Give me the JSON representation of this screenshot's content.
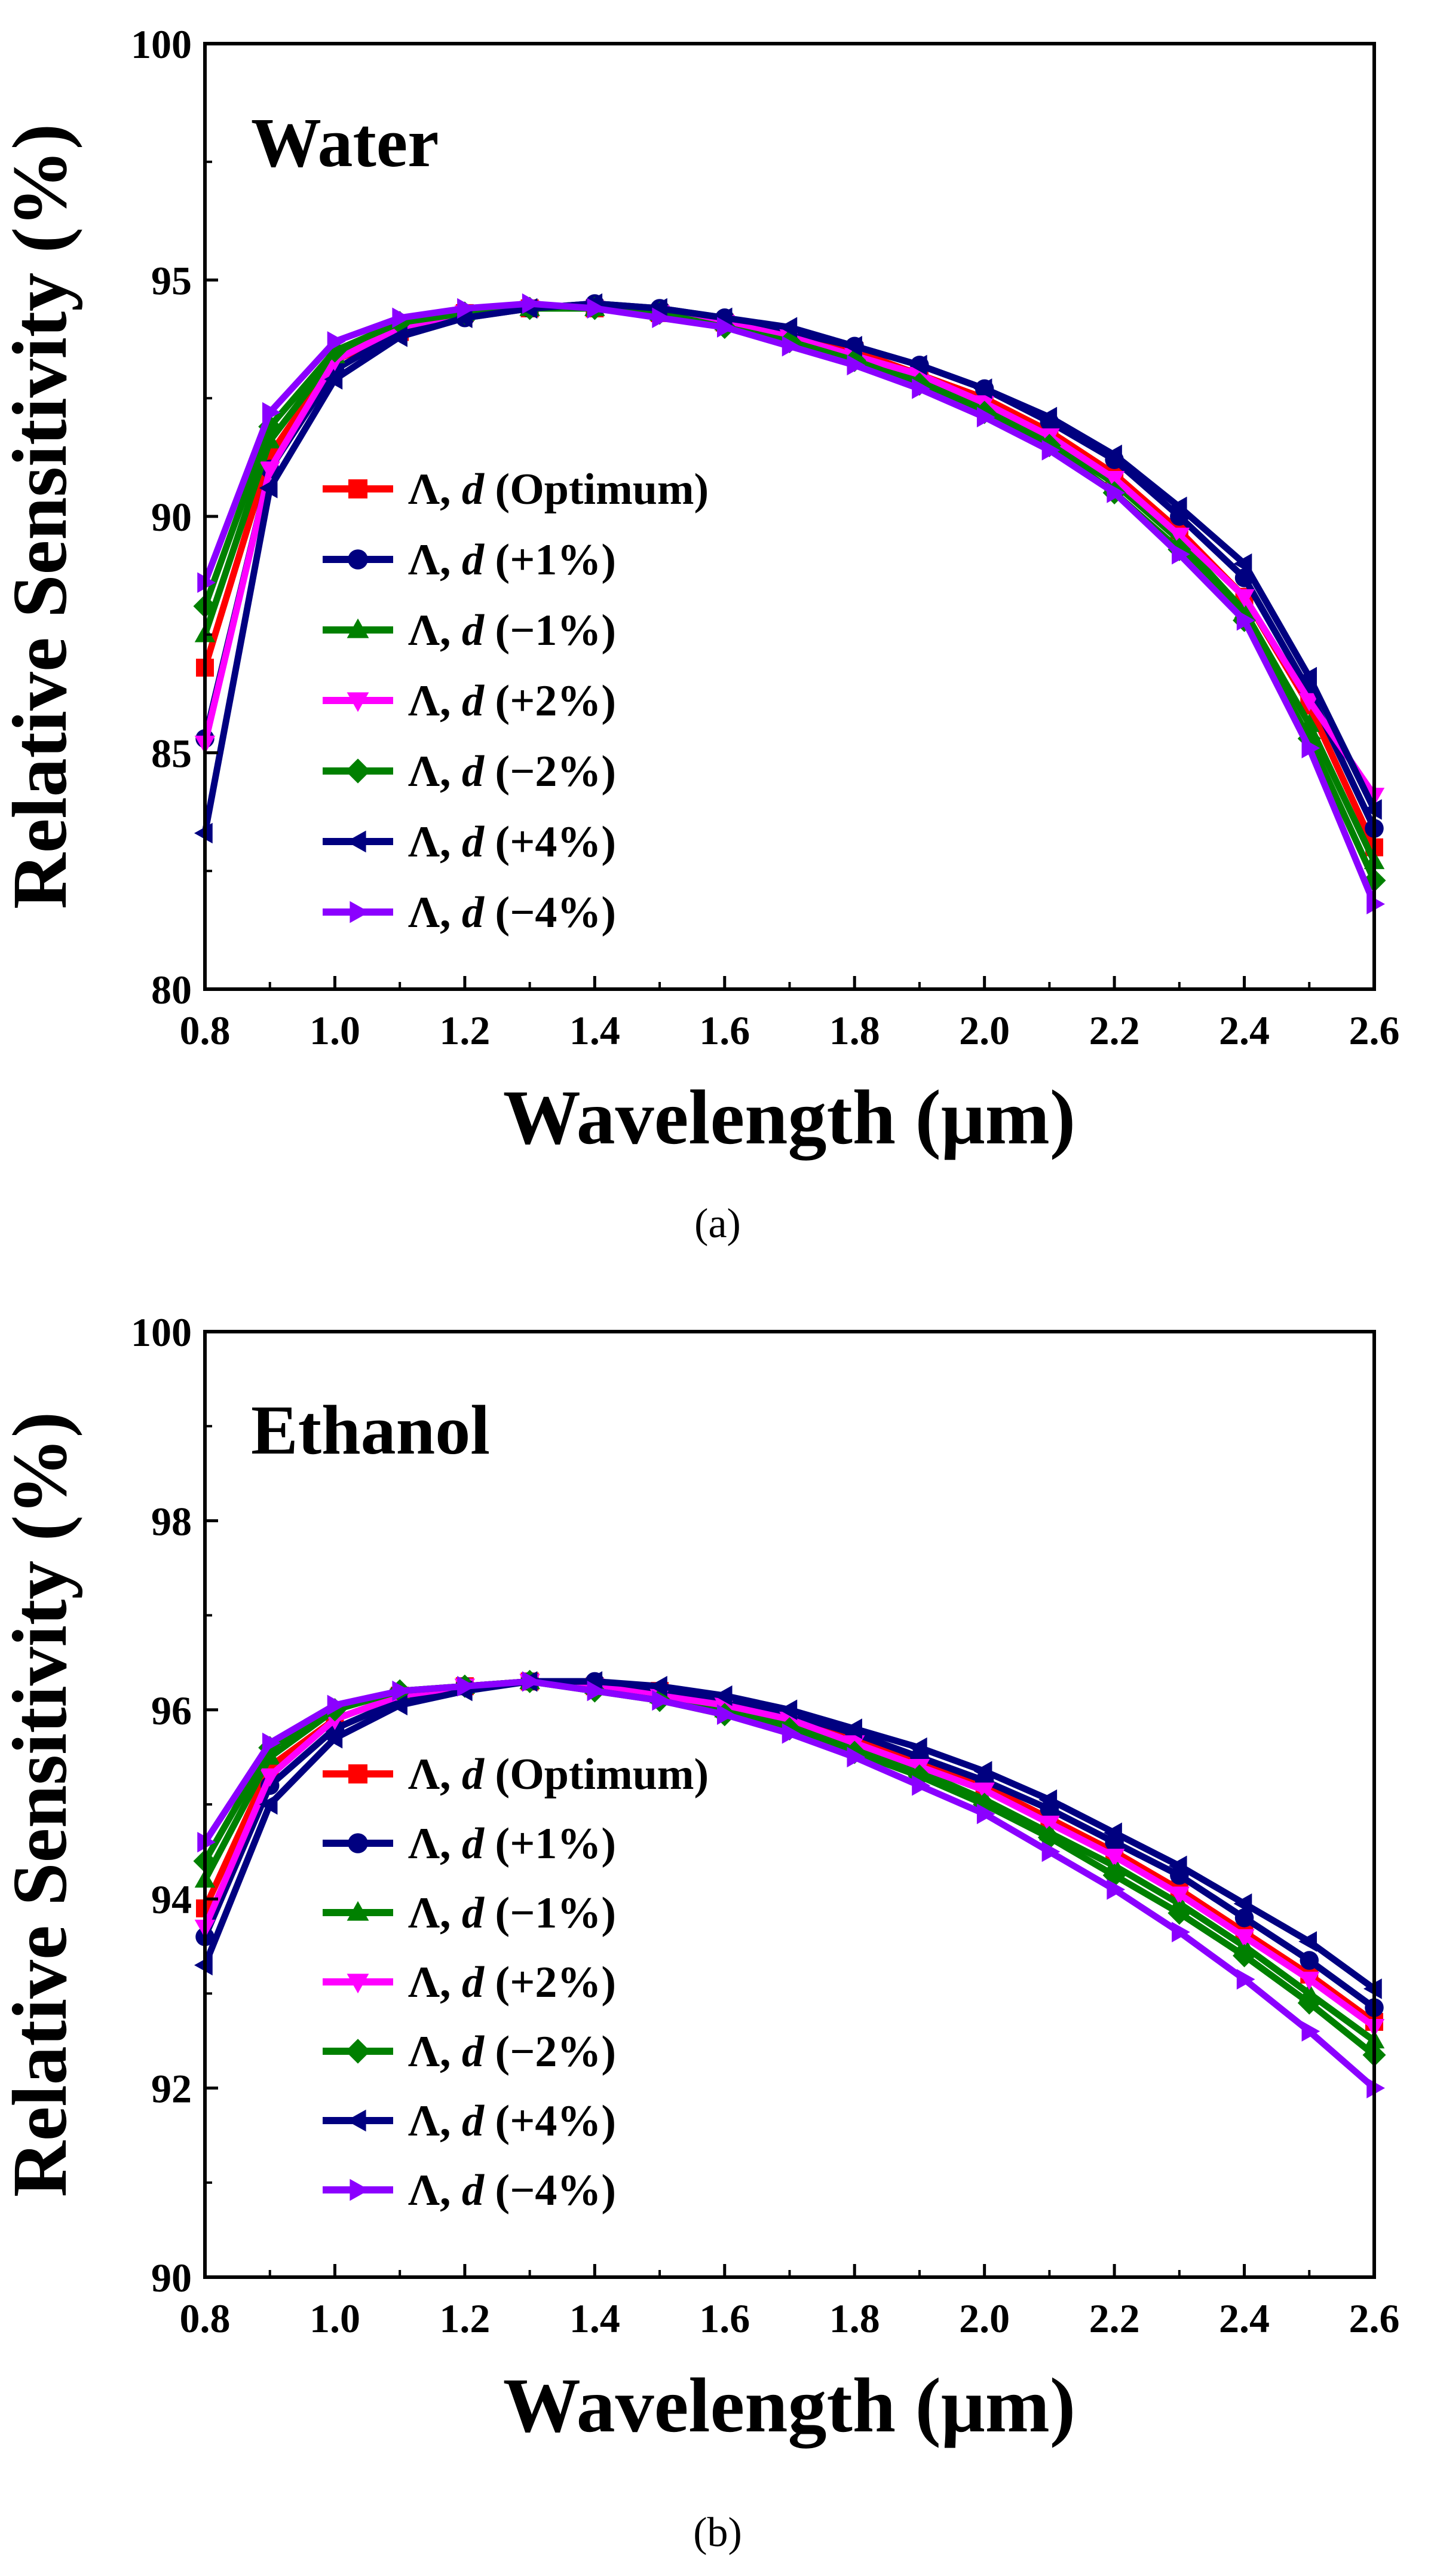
{
  "chart_data": [
    {
      "id": "a",
      "type": "line",
      "panel_label": "(a)",
      "annotation": "Water",
      "xlabel": "Wavelength (μm)",
      "ylabel": "Relative Sensitivity (%)",
      "xlim": [
        0.8,
        2.6
      ],
      "ylim": [
        80,
        100
      ],
      "xticks": [
        "0.8",
        "1.0",
        "1.2",
        "1.4",
        "1.6",
        "1.8",
        "2.0",
        "2.2",
        "2.4",
        "2.6"
      ],
      "yticks": [
        "80",
        "85",
        "90",
        "95",
        "100"
      ],
      "legend_placement": "middle-left",
      "x": [
        0.8,
        0.9,
        1.0,
        1.1,
        1.2,
        1.3,
        1.4,
        1.5,
        1.6,
        1.7,
        1.8,
        1.9,
        2.0,
        2.1,
        2.2,
        2.3,
        2.4,
        2.5,
        2.6
      ],
      "series": [
        {
          "name": "Λ, d (Optimum)",
          "prefix": "Λ, ",
          "var": "d",
          "suffix": " (Optimum)",
          "color": "#ff0000",
          "marker": "square",
          "values": [
            86.8,
            91.3,
            93.3,
            93.9,
            94.3,
            94.4,
            94.4,
            94.3,
            94.1,
            93.8,
            93.5,
            93.0,
            92.5,
            91.8,
            90.9,
            89.7,
            88.3,
            86.0,
            83.0
          ]
        },
        {
          "name": "Λ, d (+1%)",
          "prefix": "Λ, ",
          "var": "d",
          "suffix": " (+1%)",
          "color": "#000080",
          "marker": "circle",
          "values": [
            85.3,
            91.0,
            93.1,
            93.9,
            94.2,
            94.4,
            94.5,
            94.4,
            94.2,
            93.9,
            93.6,
            93.2,
            92.7,
            92.0,
            91.2,
            90.0,
            88.7,
            86.3,
            83.4
          ]
        },
        {
          "name": "Λ, d (−1%)",
          "prefix": "Λ, ",
          "var": "d",
          "suffix": " (−1%)",
          "color": "#008000",
          "marker": "triangle-up",
          "values": [
            87.5,
            91.6,
            93.4,
            94.0,
            94.3,
            94.4,
            94.4,
            94.3,
            94.1,
            93.8,
            93.4,
            92.9,
            92.3,
            91.6,
            90.7,
            89.5,
            88.0,
            85.6,
            82.7
          ]
        },
        {
          "name": "Λ, d (+2%)",
          "prefix": "Λ, ",
          "var": "d",
          "suffix": " (+2%)",
          "color": "#ff00ff",
          "marker": "triangle-down",
          "values": [
            85.2,
            91.0,
            93.3,
            94.0,
            94.3,
            94.4,
            94.4,
            94.3,
            94.1,
            93.8,
            93.4,
            93.0,
            92.4,
            91.7,
            90.8,
            89.6,
            88.3,
            86.1,
            84.1
          ]
        },
        {
          "name": "Λ, d (−2%)",
          "prefix": "Λ, ",
          "var": "d",
          "suffix": " (−2%)",
          "color": "#008000",
          "marker": "diamond",
          "values": [
            88.1,
            91.9,
            93.5,
            94.1,
            94.3,
            94.4,
            94.4,
            94.3,
            94.0,
            93.7,
            93.3,
            92.8,
            92.2,
            91.5,
            90.5,
            89.3,
            87.8,
            85.3,
            82.3
          ]
        },
        {
          "name": "Λ, d (+4%)",
          "prefix": "Λ, ",
          "var": "d",
          "suffix": " (+4%)",
          "color": "#000080",
          "marker": "triangle-left",
          "values": [
            83.3,
            90.6,
            92.9,
            93.8,
            94.2,
            94.4,
            94.5,
            94.4,
            94.2,
            94.0,
            93.6,
            93.2,
            92.7,
            92.1,
            91.3,
            90.2,
            89.0,
            86.6,
            83.8
          ]
        },
        {
          "name": "Λ, d (−4%)",
          "prefix": "Λ, ",
          "var": "d",
          "suffix": " (−4%)",
          "color": "#8b00ff",
          "marker": "triangle-right",
          "values": [
            88.6,
            92.2,
            93.7,
            94.2,
            94.4,
            94.5,
            94.4,
            94.2,
            94.0,
            93.6,
            93.2,
            92.7,
            92.1,
            91.4,
            90.5,
            89.2,
            87.8,
            85.1,
            81.8
          ]
        }
      ]
    },
    {
      "id": "b",
      "type": "line",
      "panel_label": "(b)",
      "annotation": "Ethanol",
      "xlabel": "Wavelength (μm)",
      "ylabel": "Relative Sensitivity (%)",
      "xlim": [
        0.8,
        2.6
      ],
      "ylim": [
        90,
        100
      ],
      "xticks": [
        "0.8",
        "1.0",
        "1.2",
        "1.4",
        "1.6",
        "1.8",
        "2.0",
        "2.2",
        "2.4",
        "2.6"
      ],
      "yticks": [
        "90",
        "92",
        "94",
        "96",
        "98",
        "100"
      ],
      "legend_placement": "lower-left",
      "x": [
        0.8,
        0.9,
        1.0,
        1.1,
        1.2,
        1.3,
        1.4,
        1.5,
        1.6,
        1.7,
        1.8,
        1.9,
        2.0,
        2.1,
        2.2,
        2.3,
        2.4,
        2.5,
        2.6
      ],
      "series": [
        {
          "name": "Λ, d (Optimum)",
          "prefix": "Λ, ",
          "var": "d",
          "suffix": " (Optimum)",
          "color": "#ff0000",
          "marker": "square",
          "values": [
            93.9,
            95.4,
            95.9,
            96.15,
            96.25,
            96.3,
            96.25,
            96.2,
            96.05,
            95.9,
            95.7,
            95.45,
            95.2,
            94.85,
            94.5,
            94.1,
            93.65,
            93.2,
            92.7
          ]
        },
        {
          "name": "Λ, d (+1%)",
          "prefix": "Λ, ",
          "var": "d",
          "suffix": " (+1%)",
          "color": "#000080",
          "marker": "circle",
          "values": [
            93.6,
            95.2,
            95.8,
            96.1,
            96.25,
            96.3,
            96.3,
            96.2,
            96.1,
            95.95,
            95.75,
            95.5,
            95.25,
            94.95,
            94.6,
            94.25,
            93.8,
            93.35,
            92.85
          ]
        },
        {
          "name": "Λ, d (−1%)",
          "prefix": "Λ, ",
          "var": "d",
          "suffix": " (−1%)",
          "color": "#008000",
          "marker": "triangle-up",
          "values": [
            94.2,
            95.5,
            96.0,
            96.2,
            96.25,
            96.3,
            96.25,
            96.15,
            96.0,
            95.85,
            95.6,
            95.35,
            95.05,
            94.7,
            94.35,
            93.95,
            93.5,
            93.0,
            92.5
          ]
        },
        {
          "name": "Λ, d (+2%)",
          "prefix": "Λ, ",
          "var": "d",
          "suffix": " (+2%)",
          "color": "#ff00ff",
          "marker": "triangle-down",
          "values": [
            93.7,
            95.3,
            95.9,
            96.15,
            96.25,
            96.3,
            96.25,
            96.15,
            96.05,
            95.9,
            95.65,
            95.4,
            95.15,
            94.8,
            94.45,
            94.05,
            93.6,
            93.15,
            92.65
          ]
        },
        {
          "name": "Λ, d (−2%)",
          "prefix": "Λ, ",
          "var": "d",
          "suffix": " (−2%)",
          "color": "#008000",
          "marker": "diamond",
          "values": [
            94.4,
            95.6,
            96.0,
            96.2,
            96.25,
            96.3,
            96.2,
            96.1,
            95.95,
            95.8,
            95.55,
            95.3,
            95.0,
            94.65,
            94.25,
            93.85,
            93.4,
            92.9,
            92.35
          ]
        },
        {
          "name": "Λ, d (+4%)",
          "prefix": "Λ, ",
          "var": "d",
          "suffix": " (+4%)",
          "color": "#000080",
          "marker": "triangle-left",
          "values": [
            93.3,
            95.0,
            95.7,
            96.05,
            96.2,
            96.3,
            96.3,
            96.25,
            96.15,
            96.0,
            95.8,
            95.6,
            95.35,
            95.05,
            94.7,
            94.35,
            93.95,
            93.55,
            93.05
          ]
        },
        {
          "name": "Λ, d (−4%)",
          "prefix": "Λ, ",
          "var": "d",
          "suffix": " (−4%)",
          "color": "#8b00ff",
          "marker": "triangle-right",
          "values": [
            94.6,
            95.65,
            96.05,
            96.2,
            96.25,
            96.3,
            96.2,
            96.1,
            95.95,
            95.75,
            95.5,
            95.2,
            94.9,
            94.5,
            94.1,
            93.65,
            93.15,
            92.6,
            92.0
          ]
        }
      ]
    }
  ]
}
